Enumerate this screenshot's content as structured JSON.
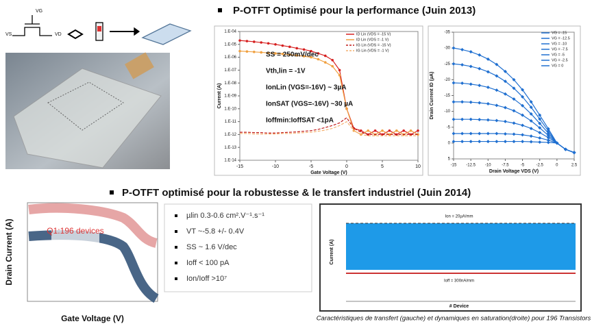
{
  "slide": {
    "heading_1": "P-OTFT Optimisé pour la performance (Juin 2013)",
    "heading_2": "P-OTFT  optimisé pour la robustesse & le transfert industriel (Juin 2014)",
    "schematic_labels": [
      "VG",
      "VS",
      "VD"
    ],
    "bullets": [
      "µlin 0.3-0.6 cm².V⁻¹.s⁻¹",
      "VT ~-5.8 +/- 0.4V",
      "SS ~ 1.6 V/dec",
      "Ioff < 100 pA",
      "Ion/Ioff >10⁷"
    ],
    "transfer_panel": {
      "y_label": "Drain Current (A)",
      "x_label": "Gate Voltage (V)",
      "annotation": "Q1:196 devices"
    },
    "dynamic_panel": {
      "y_label": "Current (A)",
      "x_label": "# Device",
      "annotation_top": "Ion = 20µA/mm",
      "annotation_bottom": "Ioff = 300nA/mm"
    },
    "caption": "Caractéristiques de transfert (gauche) et dynamiques en saturation(droite) pour 196 Transistors"
  },
  "chart_data": [
    {
      "type": "line",
      "yscale": "log",
      "x_label": "Gate Voltage (V)",
      "y_label": "Current (A)",
      "x": [
        -15,
        -14,
        -13,
        -12,
        -11,
        -10,
        -9,
        -8,
        -7,
        -6,
        -5,
        -4,
        -3,
        -2,
        -1,
        0,
        1,
        2,
        3,
        4,
        5,
        6,
        7,
        8,
        9,
        10
      ],
      "xlim": [
        -15,
        10
      ],
      "xticks": [
        -15,
        -10,
        -5,
        0,
        5,
        10
      ],
      "ylim": [
        1e-14,
        0.0001
      ],
      "yticks": [
        {
          "value": 1e-14,
          "label": "1.E-14"
        },
        {
          "value": 1e-13,
          "label": "1.E-13"
        },
        {
          "value": 1e-12,
          "label": "1.E-12"
        },
        {
          "value": 1e-11,
          "label": "1.E-11"
        },
        {
          "value": 1e-10,
          "label": "1.E-10"
        },
        {
          "value": 1e-09,
          "label": "1.E-09"
        },
        {
          "value": 1e-08,
          "label": "1.E-08"
        },
        {
          "value": 1e-07,
          "label": "1.E-07"
        },
        {
          "value": 1e-06,
          "label": "1.E-06"
        },
        {
          "value": 1e-05,
          "label": "1.E-05"
        },
        {
          "value": 0.0001,
          "label": "1.E-04"
        }
      ],
      "annotations": [
        "SS = 250mV/dec",
        "Vth,lin = -1V",
        "IonLin (VGS=-16V) ~ 3µA",
        "IonSAT (VGS=-16V) ~30 µA",
        "Ioffmin:IoffSAT <1pA"
      ],
      "series": [
        {
          "name": "ID Lin (VDS = -15 V)",
          "color": "#d62020",
          "linestyle": "solid",
          "marker": "circle",
          "values": [
            2e-05,
            1.8e-05,
            1.6e-05,
            1.4e-05,
            1.2e-05,
            1e-05,
            8e-06,
            6.5e-06,
            5e-06,
            4e-06,
            3e-06,
            2e-06,
            1.3e-06,
            6e-07,
            1e-07,
            1e-10,
            3e-12,
            2e-12,
            1e-12,
            2e-12,
            1e-12,
            2e-12,
            1e-12,
            2e-12,
            1e-12,
            2e-12
          ]
        },
        {
          "name": "ID Lin (VDS = -1 V)",
          "color": "#f0a040",
          "linestyle": "solid",
          "marker": "circle",
          "values": [
            3e-06,
            2.8e-06,
            2.6e-06,
            2.4e-06,
            2.2e-06,
            2e-06,
            1.8e-06,
            1.6e-06,
            1.4e-06,
            1.2e-06,
            1e-06,
            7e-07,
            4e-07,
            2e-07,
            4e-08,
            1e-10,
            2e-12,
            1e-12,
            2e-12,
            1e-12,
            2e-12,
            1e-12,
            2e-12,
            1e-12,
            2e-12,
            1e-12
          ]
        },
        {
          "name": "IG Lin (VDS = -15 V)",
          "color": "#c01818",
          "linestyle": "dashed",
          "marker": "none",
          "values": [
            1.5e-12,
            1.5e-12,
            1.4e-12,
            1.4e-12,
            1.3e-12,
            1.3e-12,
            1.4e-12,
            1.5e-12,
            1.6e-12,
            1.8e-12,
            2e-12,
            2.5e-12,
            3.5e-12,
            5e-12,
            8e-12,
            2e-11,
            3e-12,
            1.5e-12,
            1e-12,
            1e-12,
            1e-12,
            1e-12,
            1e-12,
            1e-12,
            1e-12,
            1e-12
          ]
        },
        {
          "name": "IG Lin (VDS = -1 V)",
          "color": "#f4b070",
          "linestyle": "dashed",
          "marker": "none",
          "values": [
            1.2e-12,
            1.2e-12,
            1.1e-12,
            1.1e-12,
            1.1e-12,
            1.1e-12,
            1.2e-12,
            1.2e-12,
            1.3e-12,
            1.4e-12,
            1.5e-12,
            1.8e-12,
            2.2e-12,
            3e-12,
            5e-12,
            1e-11,
            2e-12,
            1e-12,
            8e-13,
            8e-13,
            8e-13,
            8e-13,
            8e-13,
            8e-13,
            8e-13,
            8e-13
          ]
        }
      ]
    },
    {
      "type": "line",
      "yscale": "linear",
      "x_label": "Drain Voltage VDS (V)",
      "y_label": "Drain Current ID (µA)",
      "x": [
        -15,
        -13.75,
        -12.5,
        -11.25,
        -10,
        -8.75,
        -7.5,
        -6.25,
        -5,
        -3.75,
        -2.5,
        -1.25,
        0,
        1.25,
        2.5
      ],
      "xlim": [
        -15,
        2.5
      ],
      "xticks": [
        -15,
        -12.5,
        -10,
        -7.5,
        -5,
        -2.5,
        0,
        2.5
      ],
      "ylim": [
        5,
        -35
      ],
      "yticks": [
        5,
        0,
        -5,
        -10,
        -15,
        -20,
        -25,
        -30,
        -35
      ],
      "series": [
        {
          "name": "VG = -15",
          "color": "#1f6fd0",
          "linestyle": "solid",
          "marker": "diamond",
          "values": [
            -30,
            -29.5,
            -28.8,
            -27.8,
            -26.5,
            -24.8,
            -22.6,
            -20,
            -16.8,
            -13,
            -8.8,
            -4.5,
            0,
            2,
            3
          ]
        },
        {
          "name": "VG = -12.5",
          "color": "#1f6fd0",
          "linestyle": "solid",
          "marker": "diamond",
          "values": [
            -25,
            -24.7,
            -24.2,
            -23.5,
            -22.5,
            -21.2,
            -19.5,
            -17.3,
            -14.6,
            -11.3,
            -7.6,
            -3.8,
            0,
            2,
            3
          ]
        },
        {
          "name": "VG = -10",
          "color": "#1f6fd0",
          "linestyle": "solid",
          "marker": "diamond",
          "values": [
            -19,
            -18.9,
            -18.6,
            -18.2,
            -17.6,
            -16.7,
            -15.5,
            -13.9,
            -11.8,
            -9.2,
            -6.2,
            -3.1,
            0,
            2,
            3
          ]
        },
        {
          "name": "VG = -7.5",
          "color": "#1f6fd0",
          "linestyle": "solid",
          "marker": "diamond",
          "values": [
            -13,
            -13,
            -12.9,
            -12.7,
            -12.4,
            -11.9,
            -11.2,
            -10.2,
            -8.8,
            -7,
            -4.8,
            -2.4,
            0,
            2,
            3
          ]
        },
        {
          "name": "VG = -5",
          "color": "#1f6fd0",
          "linestyle": "solid",
          "marker": "diamond",
          "values": [
            -7.5,
            -7.5,
            -7.5,
            -7.4,
            -7.3,
            -7.1,
            -6.8,
            -6.3,
            -5.6,
            -4.6,
            -3.3,
            -1.7,
            0,
            2,
            3
          ]
        },
        {
          "name": "VG = -2.5",
          "color": "#1f6fd0",
          "linestyle": "solid",
          "marker": "diamond",
          "values": [
            -3,
            -3,
            -3,
            -3,
            -3,
            -3,
            -2.9,
            -2.8,
            -2.6,
            -2.2,
            -1.6,
            -0.9,
            0,
            2,
            3
          ]
        },
        {
          "name": "VG = 0",
          "color": "#1f6fd0",
          "linestyle": "solid",
          "marker": "diamond",
          "values": [
            -0.5,
            -0.5,
            -0.5,
            -0.5,
            -0.5,
            -0.5,
            -0.5,
            -0.5,
            -0.5,
            -0.4,
            -0.3,
            -0.2,
            0,
            2,
            3
          ]
        }
      ]
    }
  ]
}
